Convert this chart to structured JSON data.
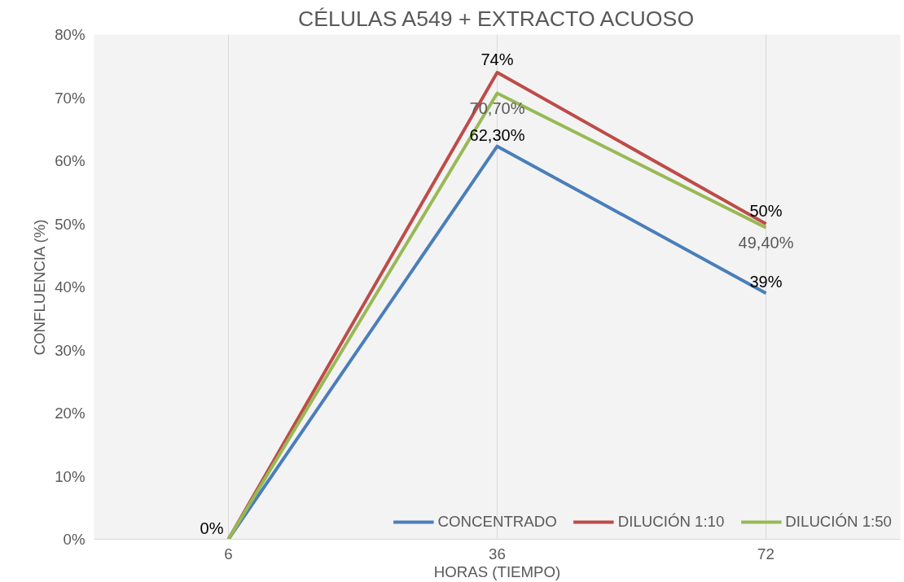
{
  "chart_data": {
    "type": "line",
    "title": "CÉLULAS A549 + EXTRACTO ACUOSO",
    "xlabel": "HORAS (TIEMPO)",
    "ylabel": "CONFLUENCIA (%)",
    "categories": [
      "6",
      "36",
      "72"
    ],
    "series": [
      {
        "name": "CONCENTRADO",
        "color": "#4a7ebb",
        "values": [
          0,
          62.3,
          39
        ],
        "value_labels": [
          "0%",
          "62,30%",
          "39%"
        ]
      },
      {
        "name": "DILUCIÓN 1:10",
        "color": "#be4b48",
        "values": [
          0,
          74,
          50
        ],
        "value_labels": [
          null,
          "74%",
          "50%"
        ]
      },
      {
        "name": "DILUCIÓN 1:50",
        "color": "#98b954",
        "values": [
          0,
          70.7,
          49.4
        ],
        "value_labels": [
          null,
          "70,70%",
          "49,40%"
        ]
      }
    ],
    "ylim": [
      0,
      80
    ],
    "yticks": [
      {
        "value": 0,
        "label": "0%"
      },
      {
        "value": 10,
        "label": "10%"
      },
      {
        "value": 20,
        "label": "20%"
      },
      {
        "value": 30,
        "label": "30%"
      },
      {
        "value": 40,
        "label": "40%"
      },
      {
        "value": 50,
        "label": "50%"
      },
      {
        "value": 60,
        "label": "60%"
      },
      {
        "value": 70,
        "label": "70%"
      },
      {
        "value": 80,
        "label": "80%"
      }
    ],
    "grid": "x",
    "legend": "bottom right",
    "marker": "none",
    "line_style": "solid"
  }
}
